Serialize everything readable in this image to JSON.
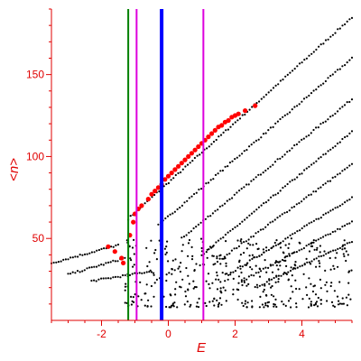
{
  "chart_data": {
    "type": "scatter",
    "title": "",
    "xlabel": "E",
    "ylabel": "<n>",
    "xlim": [
      -3.5,
      5.5
    ],
    "ylim": [
      0,
      190
    ],
    "xticks": [
      -2,
      0,
      2,
      4
    ],
    "xtick_labels": [
      "-2",
      "0",
      "2",
      "4"
    ],
    "yticks": [
      50,
      100,
      150
    ],
    "ytick_labels": [
      "50",
      "100",
      "150"
    ],
    "grid": false,
    "axis_color": "#e00000",
    "vertical_lines": [
      {
        "x": -1.2,
        "color": "#008000",
        "style": "thin"
      },
      {
        "x": -0.95,
        "color": "#dd00dd",
        "style": "thin"
      },
      {
        "x": -0.2,
        "color": "#0000ff",
        "style": "thick"
      },
      {
        "x": 1.05,
        "color": "#dd00dd",
        "style": "thin"
      }
    ],
    "series": [
      {
        "color": "#000000",
        "marker": "dot",
        "branches": [
          {
            "x0": -1.2,
            "x1": 5.5,
            "y0": 62,
            "y1": 185
          },
          {
            "x0": -0.3,
            "x1": 5.5,
            "y0": 58,
            "y1": 160
          },
          {
            "x0": 0.4,
            "x1": 5.5,
            "y0": 50,
            "y1": 135
          },
          {
            "x0": 1.0,
            "x1": 5.5,
            "y0": 40,
            "y1": 115
          },
          {
            "x0": 1.4,
            "x1": 5.5,
            "y0": 35,
            "y1": 95
          },
          {
            "x0": 1.8,
            "x1": 5.5,
            "y0": 28,
            "y1": 75
          },
          {
            "x0": 2.2,
            "x1": 5.5,
            "y0": 24,
            "y1": 60
          },
          {
            "x0": 2.6,
            "x1": 5.5,
            "y0": 20,
            "y1": 48
          },
          {
            "x0": -3.5,
            "x1": -1.5,
            "y0": 35,
            "y1": 46
          },
          {
            "x0": -3.0,
            "x1": -1.3,
            "y0": 28,
            "y1": 38
          },
          {
            "x0": -2.3,
            "x1": -0.5,
            "y0": 24,
            "y1": 30
          }
        ],
        "cloud": {
          "x_range": [
            -1.3,
            5.5
          ],
          "y_range": [
            8,
            50
          ],
          "count": 420
        }
      },
      {
        "color": "#ff0000",
        "marker": "large-dot",
        "points": [
          [
            -1.8,
            45
          ],
          [
            -1.6,
            42
          ],
          [
            -1.4,
            38
          ],
          [
            -1.35,
            35
          ],
          [
            -1.15,
            52
          ],
          [
            -1.05,
            60
          ],
          [
            -1.0,
            65
          ],
          [
            -0.9,
            68
          ],
          [
            -0.8,
            70
          ],
          [
            -0.6,
            74
          ],
          [
            -0.5,
            77
          ],
          [
            -0.4,
            79
          ],
          [
            -0.3,
            81
          ],
          [
            -0.2,
            83
          ],
          [
            -0.1,
            86
          ],
          [
            0.0,
            88
          ],
          [
            0.1,
            90
          ],
          [
            0.2,
            92
          ],
          [
            0.3,
            94
          ],
          [
            0.4,
            96
          ],
          [
            0.5,
            98
          ],
          [
            0.6,
            100
          ],
          [
            0.7,
            102
          ],
          [
            0.8,
            104
          ],
          [
            0.9,
            106
          ],
          [
            1.0,
            108
          ],
          [
            1.1,
            110
          ],
          [
            1.2,
            112
          ],
          [
            1.3,
            114
          ],
          [
            1.4,
            116
          ],
          [
            1.5,
            118
          ],
          [
            1.6,
            119
          ],
          [
            1.7,
            121
          ],
          [
            1.8,
            122
          ],
          [
            1.9,
            124
          ],
          [
            2.0,
            125
          ],
          [
            2.1,
            126
          ],
          [
            2.3,
            128
          ],
          [
            2.6,
            131
          ]
        ]
      }
    ]
  }
}
